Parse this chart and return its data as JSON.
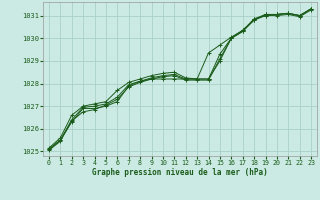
{
  "title": "Graphe pression niveau de la mer (hPa)",
  "background_color": "#cceae4",
  "grid_color": "#aad0c8",
  "line_color": "#1a5c1a",
  "xlim": [
    -0.5,
    23.5
  ],
  "ylim": [
    1024.8,
    1031.6
  ],
  "xticks": [
    0,
    1,
    2,
    3,
    4,
    5,
    6,
    7,
    8,
    9,
    10,
    11,
    12,
    13,
    14,
    15,
    16,
    17,
    18,
    19,
    20,
    21,
    22,
    23
  ],
  "yticks": [
    1025,
    1026,
    1027,
    1028,
    1029,
    1030,
    1031
  ],
  "series": [
    [
      1025.1,
      1025.5,
      1026.3,
      1026.9,
      1026.9,
      1027.0,
      1027.2,
      1027.9,
      1028.1,
      1028.2,
      1028.2,
      1028.2,
      1028.2,
      1028.2,
      1028.2,
      1029.3,
      1030.0,
      1030.3,
      1030.85,
      1031.05,
      1031.05,
      1031.1,
      1031.0,
      1031.3
    ],
    [
      1025.15,
      1025.6,
      1026.6,
      1027.0,
      1027.1,
      1027.2,
      1027.7,
      1028.05,
      1028.2,
      1028.35,
      1028.45,
      1028.5,
      1028.25,
      1028.2,
      1029.35,
      1029.7,
      1030.05,
      1030.35,
      1030.8,
      1031.05,
      1031.05,
      1031.1,
      1031.0,
      1031.3
    ],
    [
      1025.1,
      1025.5,
      1026.4,
      1026.95,
      1027.0,
      1027.1,
      1027.4,
      1027.95,
      1028.1,
      1028.25,
      1028.35,
      1028.4,
      1028.2,
      1028.2,
      1028.2,
      1029.0,
      1030.0,
      1030.35,
      1030.85,
      1031.0,
      1031.05,
      1031.1,
      1031.0,
      1031.3
    ],
    [
      1025.05,
      1025.45,
      1026.35,
      1026.75,
      1026.85,
      1027.05,
      1027.3,
      1027.85,
      1028.05,
      1028.2,
      1028.3,
      1028.35,
      1028.15,
      1028.15,
      1028.15,
      1029.1,
      1030.0,
      1030.3,
      1030.8,
      1031.0,
      1031.0,
      1031.05,
      1030.95,
      1031.25
    ]
  ]
}
